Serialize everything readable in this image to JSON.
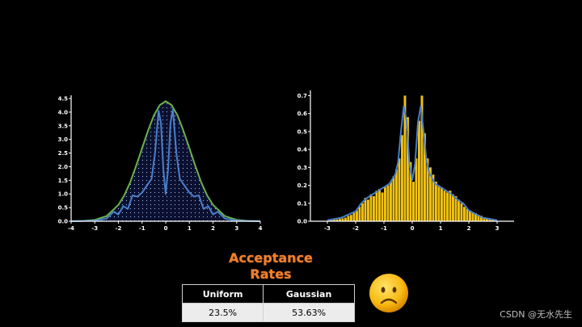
{
  "chart_data": [
    {
      "type": "line",
      "title": "",
      "xlim": [
        -4,
        4
      ],
      "ylim": [
        0,
        4.5
      ],
      "x_ticks": [
        -4,
        -3,
        -2,
        -1,
        0,
        1,
        2,
        3,
        4
      ],
      "y_ticks": [
        0.0,
        0.5,
        1.0,
        1.5,
        2.0,
        2.5,
        3.0,
        3.5,
        4.0,
        4.5
      ],
      "x_tick_labels": [
        "-4",
        "-3",
        "-2",
        "-1",
        "0",
        "1",
        "2",
        "3",
        "4"
      ],
      "y_tick_labels": [
        "0.0",
        "0.5",
        "1.0",
        "1.5",
        "2.0",
        "2.5",
        "3.0",
        "3.5",
        "4.0",
        "4.5"
      ],
      "series": [
        {
          "color": "#6ab04c",
          "x": [
            -4,
            -3.5,
            -3,
            -2.5,
            -2,
            -1.75,
            -1.5,
            -1.25,
            -1,
            -0.75,
            -0.5,
            -0.25,
            0,
            0.25,
            0.5,
            0.75,
            1,
            1.25,
            1.5,
            1.75,
            2,
            2.5,
            3,
            3.5,
            4
          ],
          "y": [
            0.002,
            0.012,
            0.05,
            0.19,
            0.6,
            0.95,
            1.43,
            2.03,
            2.68,
            3.32,
            3.88,
            4.26,
            4.4,
            4.26,
            3.88,
            3.32,
            2.68,
            2.03,
            1.43,
            0.95,
            0.6,
            0.19,
            0.05,
            0.012,
            0.002
          ]
        },
        {
          "color": "#4a7fc9",
          "x": [
            -4,
            -3,
            -2.5,
            -2.2,
            -2.0,
            -1.8,
            -1.6,
            -1.4,
            -1.2,
            -1.0,
            -0.8,
            -0.6,
            -0.45,
            -0.3,
            -0.2,
            -0.1,
            0,
            0.1,
            0.2,
            0.3,
            0.45,
            0.6,
            0.8,
            1.0,
            1.2,
            1.4,
            1.6,
            1.8,
            2.0,
            2.2,
            2.5,
            3,
            4
          ],
          "y": [
            0.0,
            0.02,
            0.1,
            0.35,
            0.25,
            0.55,
            0.45,
            0.95,
            0.9,
            1.05,
            1.3,
            1.55,
            2.5,
            4.05,
            3.6,
            1.9,
            1.0,
            1.9,
            3.6,
            4.1,
            2.5,
            1.55,
            1.3,
            1.05,
            0.9,
            0.95,
            0.45,
            0.55,
            0.25,
            0.35,
            0.1,
            0.02,
            0.0
          ]
        }
      ],
      "shading": "dotted-fill"
    },
    {
      "type": "bar",
      "title": "",
      "xlim": [
        -3.6,
        3.6
      ],
      "ylim": [
        0,
        0.72
      ],
      "x_ticks": [
        -3,
        -2,
        -1,
        0,
        1,
        2,
        3
      ],
      "y_ticks": [
        0.0,
        0.1,
        0.2,
        0.3,
        0.4,
        0.5,
        0.6,
        0.7
      ],
      "x_tick_labels": [
        "-3",
        "-2",
        "-1",
        "0",
        "1",
        "2",
        "3"
      ],
      "y_tick_labels": [
        "0.0",
        "0.1",
        "0.2",
        "0.3",
        "0.4",
        "0.5",
        "0.6",
        "0.7"
      ],
      "bar_color": "#f2c20f",
      "bins": [
        -3.0,
        -2.9,
        -2.8,
        -2.7,
        -2.6,
        -2.5,
        -2.4,
        -2.3,
        -2.2,
        -2.1,
        -2.0,
        -1.9,
        -1.8,
        -1.7,
        -1.6,
        -1.5,
        -1.4,
        -1.3,
        -1.2,
        -1.1,
        -1.0,
        -0.9,
        -0.8,
        -0.7,
        -0.6,
        -0.5,
        -0.4,
        -0.3,
        -0.2,
        -0.1,
        0.0,
        0.1,
        0.2,
        0.3,
        0.4,
        0.5,
        0.6,
        0.7,
        0.8,
        0.9,
        1.0,
        1.1,
        1.2,
        1.3,
        1.4,
        1.5,
        1.6,
        1.7,
        1.8,
        1.9,
        2.0,
        2.1,
        2.2,
        2.3,
        2.4,
        2.5,
        2.6,
        2.7,
        2.8,
        2.9
      ],
      "bin_width": 0.1,
      "values": [
        0.005,
        0.006,
        0.008,
        0.01,
        0.013,
        0.016,
        0.02,
        0.03,
        0.035,
        0.05,
        0.06,
        0.08,
        0.1,
        0.13,
        0.12,
        0.15,
        0.14,
        0.17,
        0.18,
        0.16,
        0.19,
        0.2,
        0.22,
        0.25,
        0.29,
        0.35,
        0.48,
        0.7,
        0.58,
        0.33,
        0.22,
        0.35,
        0.56,
        0.7,
        0.49,
        0.35,
        0.3,
        0.26,
        0.22,
        0.2,
        0.19,
        0.17,
        0.16,
        0.17,
        0.15,
        0.14,
        0.12,
        0.1,
        0.08,
        0.07,
        0.06,
        0.05,
        0.045,
        0.035,
        0.03,
        0.02,
        0.015,
        0.012,
        0.008,
        0.006
      ],
      "overlay": {
        "color": "#4a7fc9",
        "x": [
          -3.0,
          -2.5,
          -2.0,
          -1.8,
          -1.6,
          -1.4,
          -1.2,
          -1.0,
          -0.8,
          -0.6,
          -0.5,
          -0.4,
          -0.3,
          -0.2,
          -0.1,
          0.0,
          0.1,
          0.2,
          0.3,
          0.4,
          0.5,
          0.6,
          0.8,
          1.0,
          1.2,
          1.4,
          1.6,
          1.8,
          2.0,
          2.5,
          3.0
        ],
        "y": [
          0.005,
          0.02,
          0.055,
          0.1,
          0.13,
          0.15,
          0.17,
          0.19,
          0.21,
          0.26,
          0.33,
          0.5,
          0.64,
          0.56,
          0.32,
          0.23,
          0.32,
          0.55,
          0.64,
          0.5,
          0.34,
          0.27,
          0.21,
          0.19,
          0.17,
          0.15,
          0.12,
          0.1,
          0.06,
          0.02,
          0.005
        ]
      }
    }
  ],
  "acceptance": {
    "title_line1": "Acceptance",
    "title_line2": "Rates",
    "headers": [
      "Uniform",
      "Gaussian"
    ],
    "values": [
      "23.5%",
      "53.63%"
    ]
  },
  "emoji": "frowning-face-icon",
  "watermark": "CSDN @无水先生"
}
